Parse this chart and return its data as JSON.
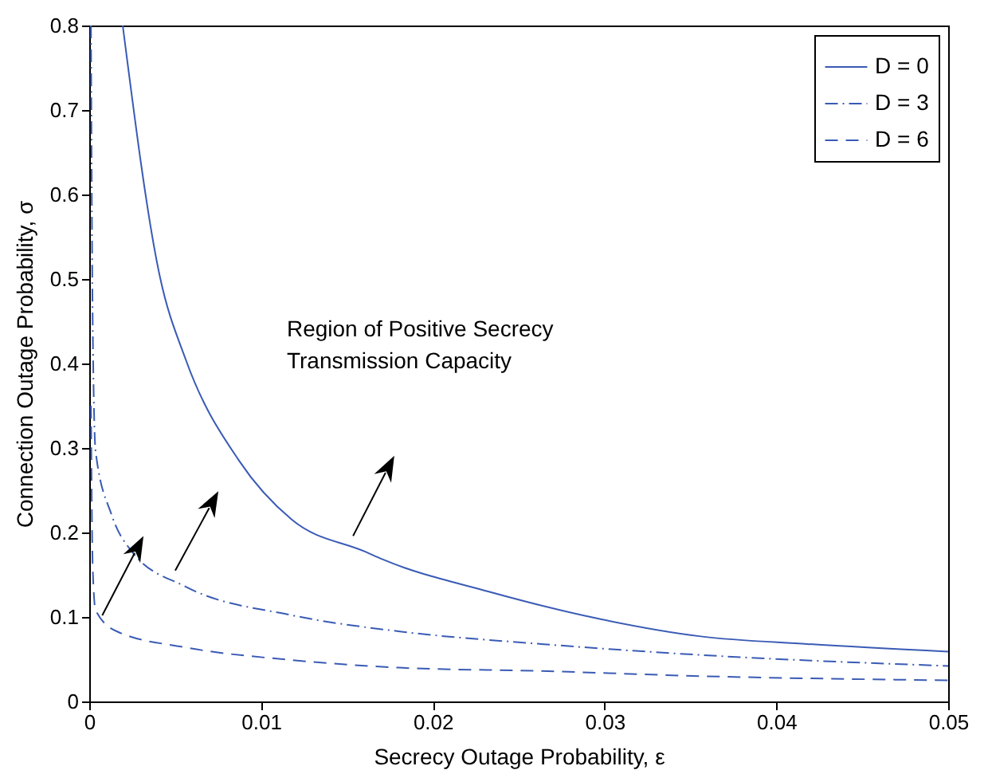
{
  "chart_data": {
    "type": "line",
    "xlabel": "Secrecy Outage Probability, ε",
    "ylabel": "Connection Outage Probability, σ",
    "xlim": [
      0,
      0.05
    ],
    "xticks": [
      0,
      0.01,
      0.02,
      0.03,
      0.04,
      0.05
    ],
    "ylim": [
      0,
      0.8
    ],
    "yticks": [
      0,
      0.1,
      0.2,
      0.3,
      0.4,
      0.5,
      0.6,
      0.7,
      0.8
    ],
    "grid": false,
    "legend": "top right",
    "marker": "none",
    "annotations": [
      "Region of Positive Secrecy\nTransmission Capacity"
    ],
    "series": [
      {
        "name": "D = 0",
        "color": "#3a5bb5",
        "line_style": "solid",
        "x": [
          0.00195,
          0.0041,
          0.00563,
          0.00872,
          0.0118,
          0.0161,
          0.0171,
          0.02326,
          0.0294,
          0.0356,
          0.0418,
          0.05
        ],
        "values": [
          0.8,
          0.504,
          0.404,
          0.285,
          0.215,
          0.177,
          0.168,
          0.13,
          0.099,
          0.077,
          0.068,
          0.059
        ]
      },
      {
        "name": "D = 3",
        "color": "#3a5bb5",
        "line_style": "dashdot",
        "x": [
          0.0001,
          0.0002,
          0.00037,
          0.0013,
          0.0025,
          0.0056,
          0.0118,
          0.018,
          0.0263,
          0.0356,
          0.05
        ],
        "values": [
          0.8,
          0.45,
          0.296,
          0.221,
          0.177,
          0.136,
          0.102,
          0.083,
          0.068,
          0.055,
          0.042
        ]
      },
      {
        "name": "D = 6",
        "color": "#3a5bb5",
        "line_style": "dashed",
        "x": [
          0.0001,
          0.0002,
          0.00037,
          0.0016,
          0.0056,
          0.0118,
          0.018,
          0.0263,
          0.0356,
          0.05
        ],
        "values": [
          0.35,
          0.16,
          0.108,
          0.083,
          0.064,
          0.049,
          0.04,
          0.036,
          0.03,
          0.025
        ]
      }
    ]
  }
}
